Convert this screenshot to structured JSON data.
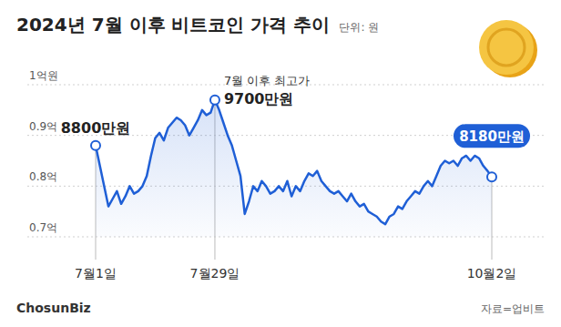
{
  "chart_data": {
    "type": "line",
    "title": "2024년 7월 이후 비트코인 가격 추이",
    "unit": "단위: 원",
    "source": "자료=업비트",
    "credit": "ChosunBiz",
    "color": "#1f5fd6",
    "grid": true,
    "ylim": [
      0.7,
      1.0
    ],
    "yticks": [
      {
        "value": 0.7,
        "label": "0.7억"
      },
      {
        "value": 0.8,
        "label": "0.8억"
      },
      {
        "value": 0.9,
        "label": "0.9억"
      },
      {
        "value": 1.0,
        "label": "1억원"
      }
    ],
    "categories": [
      "7월1일",
      null,
      null,
      null,
      null,
      null,
      null,
      null,
      null,
      null,
      null,
      null,
      null,
      null,
      null,
      null,
      null,
      null,
      null,
      null,
      null,
      null,
      null,
      null,
      null,
      null,
      null,
      null,
      "7월29일",
      null,
      null,
      null,
      null,
      null,
      null,
      null,
      null,
      null,
      null,
      null,
      null,
      null,
      null,
      null,
      null,
      null,
      null,
      null,
      null,
      null,
      null,
      null,
      null,
      null,
      null,
      null,
      null,
      null,
      null,
      null,
      null,
      null,
      null,
      null,
      null,
      null,
      null,
      null,
      null,
      null,
      null,
      null,
      null,
      null,
      null,
      null,
      null,
      null,
      null,
      null,
      null,
      null,
      null,
      null,
      null,
      null,
      null,
      null,
      null,
      null,
      null,
      null,
      null,
      "10월2일"
    ],
    "values": [
      0.88,
      0.84,
      0.8,
      0.76,
      0.775,
      0.79,
      0.765,
      0.78,
      0.8,
      0.785,
      0.79,
      0.8,
      0.82,
      0.86,
      0.895,
      0.905,
      0.89,
      0.915,
      0.925,
      0.935,
      0.93,
      0.92,
      0.9,
      0.915,
      0.93,
      0.95,
      0.94,
      0.945,
      0.97,
      0.95,
      0.925,
      0.9,
      0.88,
      0.85,
      0.82,
      0.745,
      0.77,
      0.8,
      0.79,
      0.81,
      0.8,
      0.785,
      0.79,
      0.8,
      0.79,
      0.81,
      0.78,
      0.8,
      0.79,
      0.81,
      0.825,
      0.82,
      0.83,
      0.81,
      0.8,
      0.79,
      0.785,
      0.79,
      0.78,
      0.77,
      0.785,
      0.77,
      0.76,
      0.765,
      0.75,
      0.745,
      0.74,
      0.73,
      0.725,
      0.74,
      0.745,
      0.76,
      0.755,
      0.77,
      0.78,
      0.79,
      0.785,
      0.8,
      0.81,
      0.8,
      0.82,
      0.84,
      0.85,
      0.845,
      0.85,
      0.84,
      0.855,
      0.86,
      0.85,
      0.86,
      0.855,
      0.84,
      0.83,
      0.818
    ],
    "annotations": [
      {
        "index": 0,
        "value": 0.88,
        "text": "8800만원"
      },
      {
        "index": 28,
        "value": 0.97,
        "text": "9700만원",
        "caption": "7월 이후 최고가"
      },
      {
        "index": 93,
        "value": 0.818,
        "text": "8180만원"
      }
    ]
  }
}
